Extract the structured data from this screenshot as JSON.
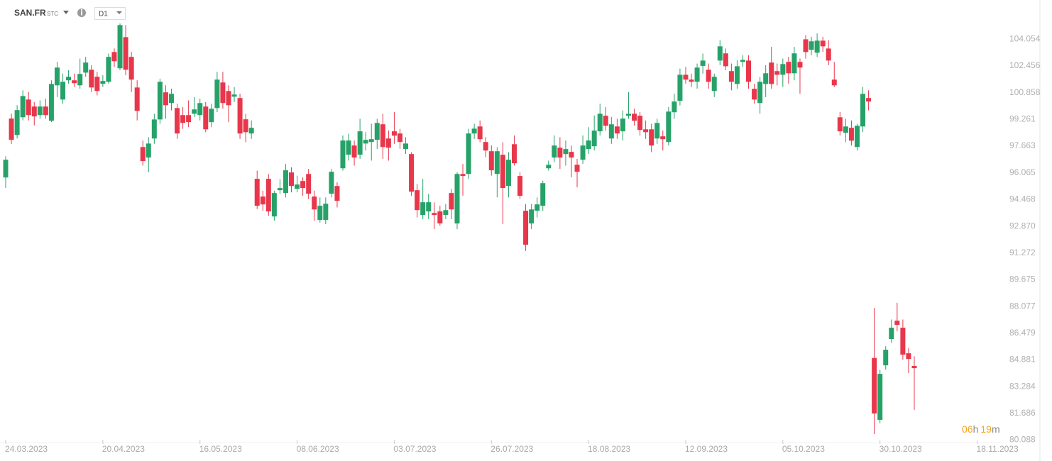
{
  "chart_data": {
    "type": "candlestick",
    "symbol": "SAN.FR",
    "symbol_suffix": "STC",
    "timeframe": "D1",
    "countdown": {
      "hours": "06",
      "hours_unit": "h",
      "minutes": "19",
      "minutes_unit": "m"
    },
    "up_color": "#26a269",
    "down_color": "#e8364b",
    "categories": [
      "24.03.2023",
      null,
      null,
      null,
      null,
      null,
      null,
      null,
      null,
      null,
      null,
      null,
      null,
      null,
      null,
      null,
      null,
      "20.04.2023",
      null,
      null,
      null,
      null,
      null,
      null,
      null,
      null,
      null,
      null,
      null,
      null,
      null,
      null,
      null,
      null,
      "16.05.2023",
      null,
      null,
      null,
      null,
      null,
      null,
      null,
      null,
      null,
      null,
      null,
      null,
      null,
      null,
      null,
      null,
      "08.06.2023",
      null,
      null,
      null,
      null,
      null,
      null,
      null,
      null,
      null,
      null,
      null,
      null,
      null,
      null,
      null,
      null,
      "03.07.2023",
      null,
      null,
      null,
      null,
      null,
      null,
      null,
      null,
      null,
      null,
      null,
      null,
      null,
      null,
      null,
      null,
      "26.07.2023",
      null,
      null,
      null,
      null,
      null,
      null,
      null,
      null,
      null,
      null,
      null,
      null,
      null,
      null,
      null,
      null,
      "18.08.2023",
      null,
      null,
      null,
      null,
      null,
      null,
      null,
      null,
      null,
      null,
      null,
      null,
      null,
      null,
      null,
      null,
      "12.09.2023",
      null,
      null,
      null,
      null,
      null,
      null,
      null,
      null,
      null,
      null,
      null,
      null,
      null,
      null,
      null,
      null,
      "05.10.2023",
      null,
      null,
      null,
      null,
      null,
      null,
      null,
      null,
      null,
      null,
      null,
      null,
      null,
      null,
      null,
      null,
      "30.10.2023",
      null,
      null,
      null,
      null,
      null,
      null,
      null,
      null,
      null,
      null,
      null,
      null,
      null,
      null,
      null,
      null,
      "18.11.2023"
    ],
    "open": [
      95.79,
      99.31,
      98.33,
      99.39,
      100.45,
      100.03,
      99.52,
      100.03,
      99.18,
      101.3,
      100.45,
      101.6,
      101.6,
      101.3,
      102.06,
      102.23,
      101.81,
      101.39,
      101.51,
      103.29,
      102.32,
      104.18,
      103.0,
      101.17,
      97.61,
      96.98,
      98.12,
      99.26,
      100.88,
      100.24,
      99.94,
      99.52,
      99.52,
      99.6,
      99.52,
      100.03,
      99.1,
      99.94,
      101.47,
      100.96,
      100.62,
      100.54,
      99.27,
      98.42,
      95.71,
      94.65,
      95.71,
      93.46,
      95.03,
      94.86,
      96.09,
      95.11,
      95.58,
      96.0,
      94.65,
      93.25,
      93.25,
      94.82,
      95.28,
      96.34,
      97.15,
      97.7,
      97.15,
      97.82,
      97.91,
      98.04,
      98.97,
      98.12,
      98.55,
      98.42,
      97.49,
      97.19,
      95.03,
      93.55,
      93.76,
      93.67,
      93.76,
      93.55,
      94.86,
      93.04,
      96.0,
      96.0,
      98.42,
      98.84,
      97.91,
      97.36,
      96.0,
      97.15,
      95.28,
      97.78,
      95.88,
      93.8,
      93.04,
      93.8,
      94.1,
      96.34,
      96.98,
      97.57,
      97.19,
      97.32,
      96.55,
      96.85,
      97.49,
      97.66,
      98.55,
      99.48,
      98.12,
      98.84,
      98.55,
      99.48,
      99.6,
      99.48,
      98.67,
      98.67,
      98.12,
      98.25,
      97.91,
      99.69,
      100.37,
      101.93,
      101.64,
      101.51,
      102.46,
      102.23,
      100.96,
      102.78,
      103.21,
      102.15,
      101.38,
      102.7,
      102.78,
      101.09,
      100.24,
      101.38,
      102.66,
      102.15,
      101.93,
      102.7,
      102.02,
      102.7,
      104.05,
      103.42,
      103.25,
      103.97,
      103.5,
      101.64,
      99.39,
      98.46,
      98.76,
      97.61,
      98.84,
      100.54,
      85.0,
      81.3,
      84.56,
      86.13,
      87.23,
      86.81,
      85.28,
      84.52,
      null,
      null,
      null,
      null,
      null,
      null,
      null,
      null,
      null,
      null,
      null
    ],
    "high": [
      97.06,
      99.6,
      100.11,
      101.0,
      100.9,
      100.3,
      100.4,
      100.5,
      101.6,
      102.7,
      102.0,
      102.2,
      102.0,
      102.9,
      103.0,
      102.5,
      102.1,
      101.9,
      103.2,
      103.5,
      105.0,
      104.9,
      103.3,
      101.6,
      98.0,
      98.2,
      99.6,
      101.7,
      101.3,
      101.1,
      100.2,
      100.0,
      100.4,
      100.6,
      100.5,
      100.3,
      100.2,
      102.1,
      102.1,
      101.3,
      101.2,
      100.8,
      99.6,
      99.2,
      96.2,
      95.0,
      96.0,
      95.0,
      95.7,
      96.6,
      96.4,
      95.9,
      95.8,
      96.3,
      95.0,
      94.6,
      94.6,
      96.3,
      95.5,
      98.3,
      98.4,
      98.0,
      99.3,
      98.5,
      99.0,
      99.3,
      99.6,
      98.6,
      99.7,
      98.7,
      98.2,
      97.3,
      95.4,
      95.7,
      94.8,
      94.3,
      94.1,
      94.2,
      95.1,
      96.1,
      96.6,
      98.7,
      99.0,
      99.2,
      98.2,
      97.7,
      97.6,
      97.9,
      97.3,
      98.3,
      96.1,
      94.2,
      94.2,
      94.6,
      95.6,
      96.8,
      98.3,
      98.2,
      98.0,
      97.7,
      96.9,
      98.3,
      98.8,
      99.5,
      100.2,
      100.0,
      99.4,
      99.3,
      99.8,
      100.9,
      99.9,
      99.7,
      99.2,
      99.0,
      99.3,
      98.6,
      100.0,
      100.8,
      102.3,
      102.4,
      102.0,
      102.6,
      103.2,
      102.6,
      102.0,
      104.0,
      103.5,
      102.6,
      102.8,
      103.1,
      103.1,
      101.4,
      101.8,
      102.5,
      103.6,
      102.6,
      102.9,
      103.0,
      103.6,
      102.9,
      104.3,
      104.2,
      104.4,
      104.2,
      104.0,
      102.7,
      99.7,
      99.3,
      99.2,
      99.0,
      101.2,
      101.0,
      88.0,
      84.3,
      85.7,
      87.3,
      88.3,
      87.3,
      85.6,
      85.1,
      null,
      null,
      null,
      null,
      null,
      null,
      null,
      null,
      null,
      null,
      null
    ],
    "low": [
      95.16,
      97.8,
      98.12,
      99.2,
      99.2,
      98.9,
      99.3,
      99.3,
      99.1,
      100.6,
      100.2,
      101.4,
      101.2,
      101.1,
      101.8,
      100.9,
      100.7,
      101.2,
      101.4,
      102.4,
      102.2,
      101.9,
      100.9,
      99.2,
      96.5,
      96.1,
      97.8,
      99.0,
      99.3,
      99.8,
      98.1,
      98.7,
      98.8,
      99.4,
      99.2,
      98.5,
      98.8,
      99.7,
      99.9,
      99.1,
      100.3,
      98.1,
      97.9,
      98.1,
      93.9,
      93.8,
      93.5,
      93.2,
      94.8,
      94.6,
      94.9,
      94.9,
      94.7,
      94.5,
      93.2,
      93.1,
      93.0,
      94.6,
      94.0,
      96.2,
      96.8,
      96.5,
      96.9,
      97.4,
      96.8,
      97.5,
      96.9,
      96.8,
      97.8,
      97.5,
      97.2,
      94.7,
      93.4,
      93.3,
      93.3,
      92.7,
      92.9,
      93.3,
      93.3,
      92.7,
      94.7,
      95.7,
      98.1,
      97.9,
      97.0,
      95.9,
      94.6,
      93.0,
      94.6,
      96.5,
      94.5,
      91.4,
      92.7,
      93.4,
      93.8,
      96.2,
      96.7,
      96.3,
      96.5,
      95.8,
      95.2,
      96.6,
      97.2,
      97.4,
      98.3,
      98.6,
      97.8,
      98.1,
      98.0,
      99.3,
      98.9,
      98.3,
      98.1,
      97.3,
      97.8,
      97.4,
      97.7,
      99.3,
      100.1,
      101.4,
      101.2,
      101.1,
      102.0,
      101.1,
      100.6,
      102.5,
      102.2,
      101.0,
      101.1,
      102.4,
      101.1,
      100.2,
      99.6,
      100.6,
      101.1,
      101.3,
      101.2,
      101.4,
      101.6,
      100.8,
      102.9,
      103.1,
      103.0,
      103.3,
      102.5,
      101.2,
      98.3,
      97.9,
      97.7,
      97.4,
      98.5,
      99.8,
      80.45,
      81.1,
      84.3,
      85.9,
      86.6,
      84.9,
      84.1,
      81.9,
      null,
      null,
      null,
      null,
      null,
      null,
      null,
      null,
      null,
      null,
      null
    ],
    "close": [
      96.85,
      98.04,
      99.82,
      100.66,
      99.52,
      99.44,
      100.03,
      99.52,
      101.38,
      102.36,
      101.51,
      101.81,
      101.43,
      101.98,
      102.66,
      101.17,
      100.96,
      101.56,
      103.0,
      102.74,
      104.9,
      102.23,
      101.64,
      99.77,
      96.77,
      97.82,
      99.26,
      101.51,
      100.11,
      100.79,
      98.42,
      99.05,
      99.1,
      99.86,
      100.24,
      98.67,
      99.9,
      101.64,
      100.24,
      100.11,
      100.75,
      98.42,
      98.5,
      98.76,
      94.1,
      94.18,
      93.76,
      94.86,
      95.16,
      96.22,
      95.28,
      95.37,
      95.16,
      94.82,
      93.88,
      94.1,
      94.22,
      96.13,
      94.39,
      98.0,
      98.0,
      96.98,
      98.55,
      98.04,
      98.08,
      99.05,
      97.61,
      97.57,
      98.29,
      97.91,
      97.82,
      94.94,
      93.84,
      94.31,
      94.31,
      93.55,
      93.04,
      93.84,
      93.88,
      96.0,
      95.88,
      98.42,
      98.71,
      98.08,
      97.4,
      96.22,
      97.36,
      95.16,
      96.85,
      96.64,
      94.69,
      91.77,
      93.88,
      94.18,
      95.45,
      96.55,
      97.7,
      96.98,
      97.49,
      96.98,
      96.13,
      97.7,
      98.0,
      98.59,
      99.6,
      98.88,
      98.97,
      98.42,
      99.31,
      99.6,
      99.18,
      98.63,
      98.5,
      97.7,
      99.05,
      98.08,
      99.73,
      100.33,
      101.93,
      101.64,
      101.51,
      102.36,
      102.78,
      101.51,
      101.81,
      103.63,
      102.44,
      101.51,
      102.44,
      102.82,
      101.51,
      100.45,
      101.51,
      102.02,
      101.38,
      101.93,
      102.57,
      102.02,
      103.21,
      102.36,
      103.29,
      103.93,
      103.97,
      103.63,
      102.78,
      101.3,
      98.55,
      98.84,
      97.99,
      98.88,
      100.79,
      100.33,
      81.68,
      84.05,
      85.49,
      86.81,
      86.98,
      85.2,
      84.94,
      84.39,
      null,
      null,
      null,
      null,
      null,
      null,
      null,
      null,
      null,
      null,
      null
    ],
    "ylim": [
      79.9,
      106.4
    ],
    "yticks": [
      104.054,
      102.456,
      100.858,
      99.261,
      97.663,
      96.065,
      94.468,
      {
        "value": 92.87,
        "label": "92.870"
      },
      91.272,
      89.675,
      88.077,
      86.479,
      84.881,
      83.284,
      81.686,
      80.088
    ]
  }
}
